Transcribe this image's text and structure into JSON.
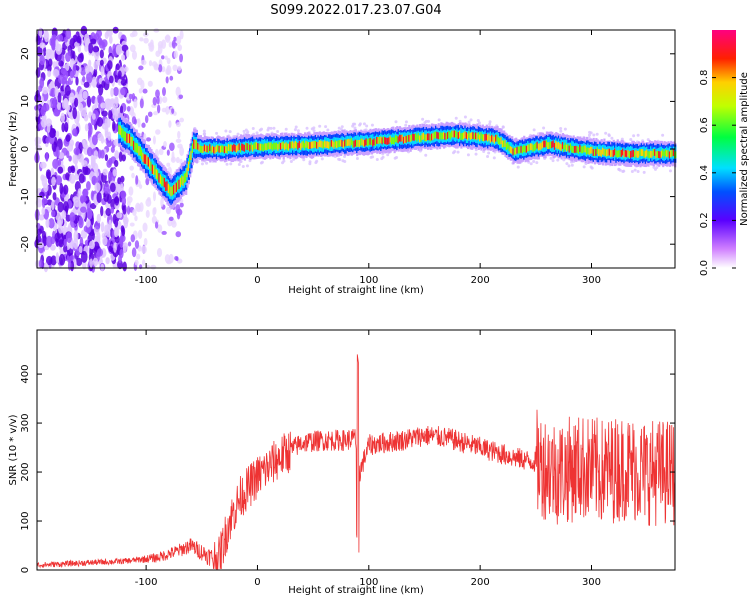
{
  "title": "S099.2022.017.23.07.G04",
  "chart_data": [
    {
      "type": "heatmap",
      "xlabel": "Height of straight line (km)",
      "ylabel": "Frequency (Hz)",
      "xlim": [
        -198,
        375
      ],
      "ylim": [
        -25,
        25
      ],
      "xticks": [
        -100,
        0,
        100,
        200,
        300
      ],
      "yticks": [
        -20,
        -10,
        0,
        10,
        20
      ],
      "colorbar": {
        "label": "Normalized spectral amplitude",
        "range": [
          0.0,
          1.0
        ],
        "ticks": [
          0.0,
          0.2,
          0.4,
          0.6,
          0.8
        ]
      },
      "signal_track": {
        "description_points_x": [
          -125,
          -115,
          -105,
          -95,
          -85,
          -78,
          -70,
          -65,
          -58,
          -50,
          -30,
          0,
          50,
          100,
          150,
          175,
          200,
          215,
          230,
          260,
          300,
          340,
          375
        ],
        "frequency_hz": [
          4,
          2,
          -1,
          -4,
          -7,
          -9,
          -7,
          -6,
          1,
          0,
          0,
          0.5,
          0.8,
          1.5,
          2.5,
          3,
          2.5,
          2,
          -0.5,
          1,
          -0.5,
          -1,
          -1
        ]
      },
      "grid": false
    },
    {
      "type": "line",
      "xlabel": "Height of straight line (km)",
      "ylabel": "SNR (10 * v/v)",
      "xlim": [
        -198,
        375
      ],
      "ylim": [
        0,
        490
      ],
      "xticks": [
        -100,
        0,
        100,
        200,
        300
      ],
      "yticks": [
        0,
        100,
        200,
        300,
        400
      ],
      "color": "#ee3333",
      "series": [
        {
          "x": [
            -198,
            -150,
            -120,
            -90,
            -70,
            -60,
            -45,
            -35,
            -25,
            -15,
            0,
            20,
            40,
            60,
            80,
            88,
            92,
            100,
            130,
            150,
            170,
            200,
            230,
            250,
            270,
            290,
            310,
            330,
            350,
            375
          ],
          "values": [
            10,
            15,
            18,
            25,
            40,
            50,
            30,
            20,
            100,
            150,
            190,
            230,
            260,
            265,
            265,
            270,
            200,
            255,
            265,
            275,
            270,
            250,
            230,
            220,
            200,
            210,
            200,
            210,
            200,
            200
          ]
        }
      ],
      "grid": false
    }
  ]
}
